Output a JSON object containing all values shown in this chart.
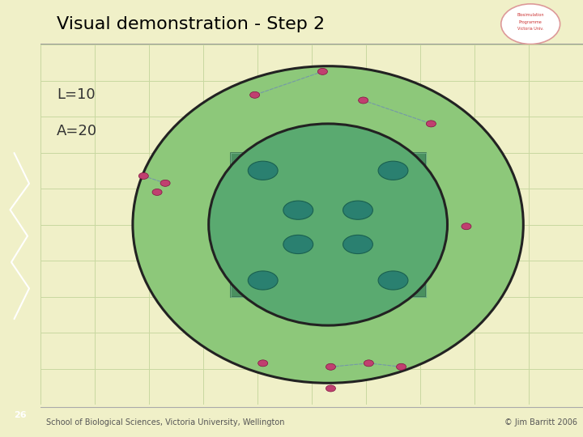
{
  "title": "Visual demonstration - Step 2",
  "L": 10,
  "A": 20,
  "slide_number": "26",
  "footer_left": "School of Biological Sciences, Victoria University, Wellington",
  "footer_right": "© Jim Barritt 2006",
  "bg_color": "#f0f0c8",
  "sidebar_color": "#2d6b00",
  "grid_color": "#c8d8a0",
  "outer_ellipse_color": "#8dc87a",
  "inner_ring_color": "#6aaa6a",
  "square_color": "#4a9060",
  "inner_ellipse_color": "#5aaa70",
  "teal_dot_color": "#2a8070",
  "pink_dot_color": "#c04070",
  "dashed_line_color": "#7090b0",
  "title_fontsize": 16,
  "label_fontsize": 13,
  "footer_fontsize": 7
}
